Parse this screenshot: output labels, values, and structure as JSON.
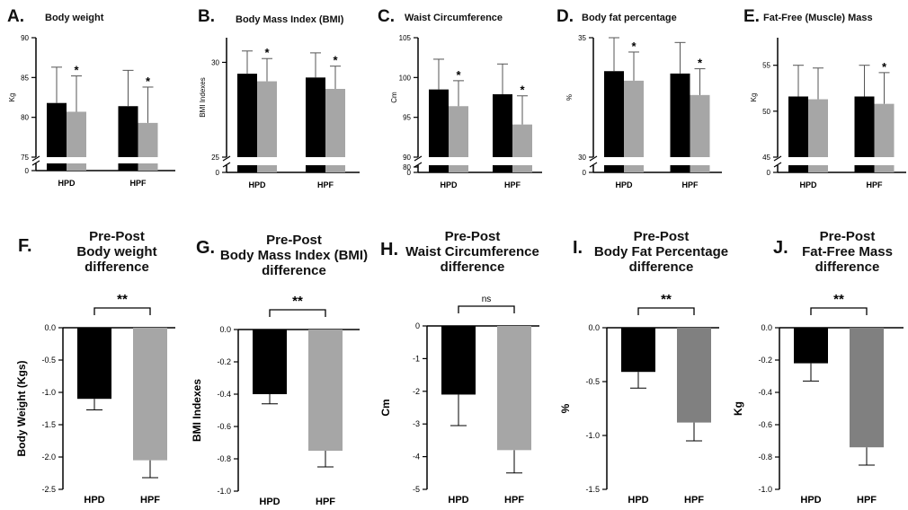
{
  "colors": {
    "hpd": "#000000",
    "post": "#a6a6a6",
    "post_dark": "#808080",
    "axis": "#000000"
  },
  "chart_data": [
    {
      "type": "bar",
      "letter": "A.",
      "title": "Body weight",
      "ylabel": "Kg",
      "categories": [
        "HPD",
        "HPF"
      ],
      "ylim": [
        75,
        90
      ],
      "yticks": [
        75,
        80,
        85,
        90
      ],
      "broken_axis_floor": "0",
      "series": [
        {
          "values": [
            81.8,
            81.4
          ],
          "errors": [
            4.5,
            4.5
          ]
        },
        {
          "values": [
            80.7,
            79.3
          ],
          "errors": [
            4.5,
            4.5
          ]
        }
      ],
      "significance": [
        "*",
        "*"
      ]
    },
    {
      "type": "bar",
      "letter": "B.",
      "title": "Body Mass Index (BMI)",
      "ylabel": "BMI Indexes",
      "categories": [
        "HPD",
        "HPF"
      ],
      "ylim": [
        25,
        31.3
      ],
      "yticks": [
        25,
        30
      ],
      "broken_axis_floor": "0",
      "series": [
        {
          "values": [
            29.4,
            29.2
          ],
          "errors": [
            1.2,
            1.3
          ]
        },
        {
          "values": [
            29.0,
            28.6
          ],
          "errors": [
            1.2,
            1.2
          ]
        }
      ],
      "significance": [
        "*",
        "*"
      ]
    },
    {
      "type": "bar",
      "letter": "C.",
      "title": "Waist Circumference",
      "ylabel": "Cm",
      "categories": [
        "HPD",
        "HPF"
      ],
      "ylim": [
        90,
        105
      ],
      "yticks": [
        90,
        95,
        100,
        105
      ],
      "broken_axis_floor": [
        "80",
        "0"
      ],
      "series": [
        {
          "values": [
            98.5,
            97.9
          ],
          "errors": [
            3.8,
            3.8
          ]
        },
        {
          "values": [
            96.4,
            94.1
          ],
          "errors": [
            3.2,
            3.6
          ]
        }
      ],
      "significance": [
        "*",
        "*"
      ]
    },
    {
      "type": "bar",
      "letter": "D.",
      "title": "Body fat percentage",
      "ylabel": "%",
      "categories": [
        "HPD",
        "HPF"
      ],
      "ylim": [
        30,
        35
      ],
      "yticks": [
        30,
        35
      ],
      "broken_axis_floor": "0",
      "series": [
        {
          "values": [
            33.6,
            33.5
          ],
          "errors": [
            1.4,
            1.3
          ]
        },
        {
          "values": [
            33.2,
            32.6
          ],
          "errors": [
            1.2,
            1.1
          ]
        }
      ],
      "significance": [
        "*",
        "*"
      ]
    },
    {
      "type": "bar",
      "letter": "E.",
      "title": "Fat-Free (Muscle) Mass",
      "ylabel": "Kg",
      "categories": [
        "HPD",
        "HPF"
      ],
      "ylim": [
        45,
        58
      ],
      "yticks": [
        45,
        50,
        55
      ],
      "broken_axis_floor": "0",
      "series": [
        {
          "values": [
            51.6,
            51.6
          ],
          "errors": [
            3.4,
            3.4
          ]
        },
        {
          "values": [
            51.3,
            50.8
          ],
          "errors": [
            3.4,
            3.4
          ]
        }
      ],
      "significance": [
        "",
        "*"
      ]
    },
    {
      "type": "bar",
      "letter": "F.",
      "title": [
        "Pre-Post",
        "Body weight",
        "difference"
      ],
      "ylabel": "Body  Weight (Kgs)",
      "categories": [
        "HPD",
        "HPF"
      ],
      "values": [
        -1.1,
        -2.05
      ],
      "errors": [
        0.17,
        0.27
      ],
      "ylim": [
        -2.5,
        0
      ],
      "yticks": [
        "0.0",
        "-0.5",
        "-1.0",
        "-1.5",
        "-2.0",
        "-2.5"
      ],
      "significance": "**"
    },
    {
      "type": "bar",
      "letter": "G.",
      "title": [
        "Pre-Post",
        "Body Mass Index (BMI)",
        "difference"
      ],
      "ylabel": "BMI Indexes",
      "categories": [
        "HPD",
        "HPF"
      ],
      "values": [
        -0.4,
        -0.75
      ],
      "errors": [
        0.06,
        0.1
      ],
      "ylim": [
        -1.0,
        0
      ],
      "yticks": [
        "0.0",
        "-0.2",
        "-0.4",
        "-0.6",
        "-0.8",
        "-1.0"
      ],
      "significance": "**"
    },
    {
      "type": "bar",
      "letter": "H.",
      "title": [
        "Pre-Post",
        "Waist Circumference",
        "difference"
      ],
      "ylabel": "Cm",
      "categories": [
        "HPD",
        "HPF"
      ],
      "values": [
        -2.1,
        -3.8
      ],
      "errors": [
        0.95,
        0.7
      ],
      "ylim": [
        -5,
        0
      ],
      "yticks": [
        "0",
        "-1",
        "-2",
        "-3",
        "-4",
        "-5"
      ],
      "significance": "ns"
    },
    {
      "type": "bar",
      "letter": "I.",
      "title": [
        "Pre-Post",
        "Body Fat Percentage",
        "difference"
      ],
      "ylabel": "%",
      "categories": [
        "HPD",
        "HPF"
      ],
      "values": [
        -0.41,
        -0.88
      ],
      "errors": [
        0.15,
        0.17
      ],
      "ylim": [
        -1.5,
        0
      ],
      "yticks": [
        "0.0",
        "-0.5",
        "-1.0",
        "-1.5"
      ],
      "significance": "**"
    },
    {
      "type": "bar",
      "letter": "J.",
      "title": [
        "Pre-Post",
        "Fat-Free Mass",
        "difference"
      ],
      "ylabel": "Kg",
      "categories": [
        "HPD",
        "HPF"
      ],
      "values": [
        -0.22,
        -0.74
      ],
      "errors": [
        0.11,
        0.11
      ],
      "ylim": [
        -1.0,
        0
      ],
      "yticks": [
        "0.0",
        "-0.2",
        "-0.4",
        "-0.6",
        "-0.8",
        "-1.0"
      ],
      "significance": "**"
    }
  ]
}
